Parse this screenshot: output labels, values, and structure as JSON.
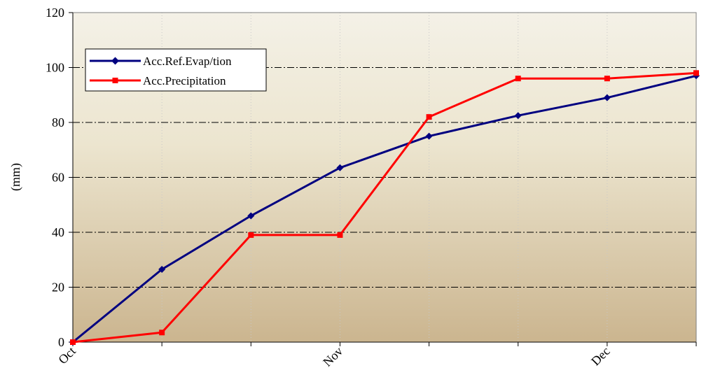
{
  "chart_data": {
    "type": "line",
    "title": "",
    "xlabel": "",
    "ylabel": "(mm)",
    "ylim": [
      0,
      120
    ],
    "y_ticks": [
      "0",
      "20",
      "40",
      "60",
      "80",
      "100",
      "120"
    ],
    "x_tick_labels": [
      "Oct",
      "Nov",
      "Dec"
    ],
    "x": [
      0,
      1,
      2,
      3,
      4,
      5,
      6,
      7
    ],
    "grid": "horizontal dash-dot",
    "legend_position": "top-left",
    "series": [
      {
        "name": "Acc.Ref.Evap/tion",
        "color": "#000080",
        "marker": "diamond",
        "values": [
          0,
          26.5,
          46,
          63.5,
          75,
          82.5,
          89,
          97
        ]
      },
      {
        "name": "Acc.Precipitation",
        "color": "#ff0000",
        "marker": "square",
        "values": [
          0,
          3.5,
          39,
          39,
          82,
          96,
          96,
          98
        ]
      }
    ]
  }
}
